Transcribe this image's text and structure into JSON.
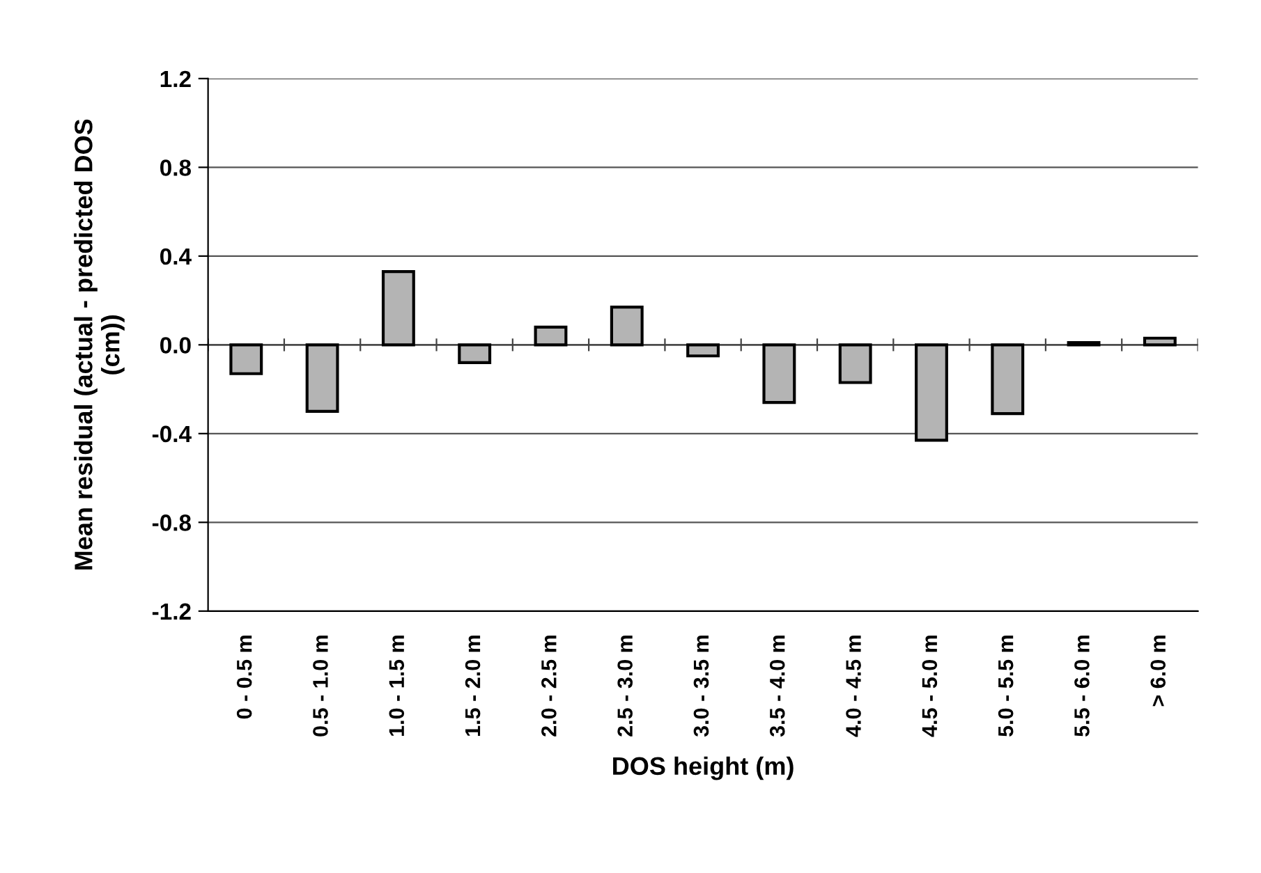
{
  "chart_data": {
    "type": "bar",
    "xlabel": "DOS height (m)",
    "ylabel": "Mean residual (actual - predicted DOS\n(cm))",
    "categories": [
      "0 - 0.5 m",
      "0.5 - 1.0 m",
      "1.0 - 1.5 m",
      "1.5 - 2.0 m",
      "2.0 - 2.5 m",
      "2.5 - 3.0 m",
      "3.0 - 3.5 m",
      "3.5 - 4.0 m",
      "4.0 - 4.5 m",
      "4.5 - 5.0 m",
      "5.0 - 5.5 m",
      "5.5 - 6.0 m",
      "> 6.0 m"
    ],
    "values": [
      -0.13,
      -0.3,
      0.33,
      -0.08,
      0.08,
      0.17,
      -0.05,
      -0.26,
      -0.17,
      -0.43,
      -0.31,
      0.01,
      0.03
    ],
    "color": "#b4b4b4",
    "ylim": [
      -1.2,
      1.2
    ],
    "yticks": [
      {
        "value": -1.2,
        "label": "-1.2"
      },
      {
        "value": -0.8,
        "label": "-0.8"
      },
      {
        "value": -0.4,
        "label": "-0.4"
      },
      {
        "value": 0.0,
        "label": "0.0"
      },
      {
        "value": 0.4,
        "label": "0.4"
      },
      {
        "value": 0.8,
        "label": "0.8"
      },
      {
        "value": 1.2,
        "label": "1.2"
      }
    ],
    "grid": "y",
    "legend": false
  }
}
